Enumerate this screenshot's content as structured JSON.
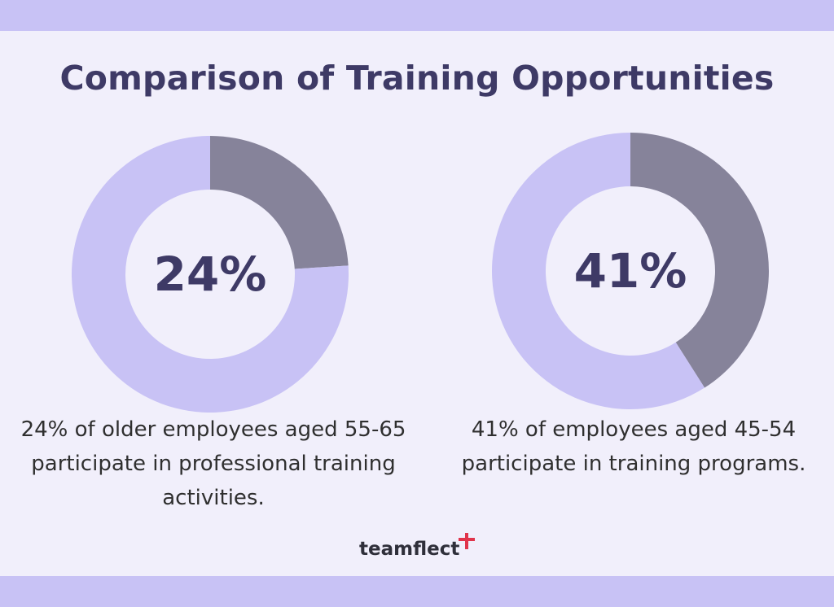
{
  "title": "Comparison of Training Opportunities",
  "colors": {
    "highlight": "#86839a",
    "remainder": "#c8c2f5",
    "title": "#3e3a66",
    "band": "#c8c2f5"
  },
  "chart_data": [
    {
      "type": "pie",
      "slices": [
        {
          "label": "",
          "value": 24,
          "color": "#86839a"
        },
        {
          "label": "",
          "value": 76,
          "color": "#c8c2f5"
        }
      ],
      "center_label": "24%",
      "caption": "24% of older employees aged 55-65 participate in professional training activities."
    },
    {
      "type": "pie",
      "slices": [
        {
          "label": "",
          "value": 41,
          "color": "#86839a"
        },
        {
          "label": "",
          "value": 59,
          "color": "#c8c2f5"
        }
      ],
      "center_label": "41%",
      "caption": "41% of employees aged 45-54 participate in training programs."
    }
  ],
  "logo": {
    "text": "teamflect",
    "icon": "plus-icon"
  }
}
